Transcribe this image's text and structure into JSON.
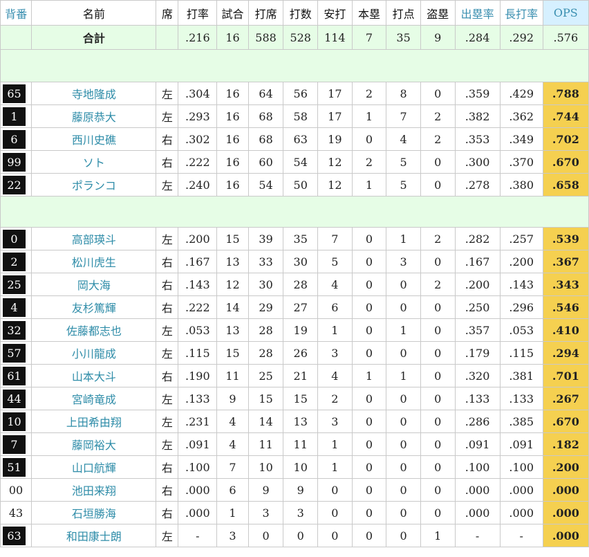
{
  "headers": {
    "number": "背番",
    "name": "名前",
    "bats": "席",
    "avg": "打率",
    "games": "試合",
    "pa": "打席",
    "ab": "打数",
    "hits": "安打",
    "hr": "本塁",
    "rbi": "打点",
    "sb": "盗塁",
    "obp": "出塁率",
    "slg": "長打率",
    "ops": "OPS"
  },
  "total": {
    "label": "合計",
    "avg": ".216",
    "games": "16",
    "pa": "588",
    "ab": "528",
    "hits": "114",
    "hr": "7",
    "rbi": "35",
    "sb": "9",
    "obp": ".284",
    "slg": ".292",
    "ops": ".576"
  },
  "groups": [
    {
      "players": [
        {
          "number": "65",
          "boxed": true,
          "name": "寺地隆成",
          "bats": "左",
          "avg": ".304",
          "games": "16",
          "pa": "64",
          "ab": "56",
          "hits": "17",
          "hr": "2",
          "rbi": "8",
          "sb": "0",
          "obp": ".359",
          "slg": ".429",
          "ops": ".788"
        },
        {
          "number": "1",
          "boxed": true,
          "name": "藤原恭大",
          "bats": "左",
          "avg": ".293",
          "games": "16",
          "pa": "68",
          "ab": "58",
          "hits": "17",
          "hr": "1",
          "rbi": "7",
          "sb": "2",
          "obp": ".382",
          "slg": ".362",
          "ops": ".744"
        },
        {
          "number": "6",
          "boxed": true,
          "name": "西川史礁",
          "bats": "右",
          "avg": ".302",
          "games": "16",
          "pa": "68",
          "ab": "63",
          "hits": "19",
          "hr": "0",
          "rbi": "4",
          "sb": "2",
          "obp": ".353",
          "slg": ".349",
          "ops": ".702"
        },
        {
          "number": "99",
          "boxed": true,
          "name": "ソト",
          "bats": "右",
          "avg": ".222",
          "games": "16",
          "pa": "60",
          "ab": "54",
          "hits": "12",
          "hr": "2",
          "rbi": "5",
          "sb": "0",
          "obp": ".300",
          "slg": ".370",
          "ops": ".670"
        },
        {
          "number": "22",
          "boxed": true,
          "name": "ポランコ",
          "bats": "左",
          "avg": ".240",
          "games": "16",
          "pa": "54",
          "ab": "50",
          "hits": "12",
          "hr": "1",
          "rbi": "5",
          "sb": "0",
          "obp": ".278",
          "slg": ".380",
          "ops": ".658"
        }
      ]
    },
    {
      "players": [
        {
          "number": "0",
          "boxed": true,
          "name": "高部瑛斗",
          "bats": "左",
          "avg": ".200",
          "games": "15",
          "pa": "39",
          "ab": "35",
          "hits": "7",
          "hr": "0",
          "rbi": "1",
          "sb": "2",
          "obp": ".282",
          "slg": ".257",
          "ops": ".539"
        },
        {
          "number": "2",
          "boxed": true,
          "name": "松川虎生",
          "bats": "右",
          "avg": ".167",
          "games": "13",
          "pa": "33",
          "ab": "30",
          "hits": "5",
          "hr": "0",
          "rbi": "3",
          "sb": "0",
          "obp": ".167",
          "slg": ".200",
          "ops": ".367"
        },
        {
          "number": "25",
          "boxed": true,
          "name": "岡大海",
          "bats": "右",
          "avg": ".143",
          "games": "12",
          "pa": "30",
          "ab": "28",
          "hits": "4",
          "hr": "0",
          "rbi": "0",
          "sb": "2",
          "obp": ".200",
          "slg": ".143",
          "ops": ".343"
        },
        {
          "number": "4",
          "boxed": true,
          "name": "友杉篤輝",
          "bats": "右",
          "avg": ".222",
          "games": "14",
          "pa": "29",
          "ab": "27",
          "hits": "6",
          "hr": "0",
          "rbi": "0",
          "sb": "0",
          "obp": ".250",
          "slg": ".296",
          "ops": ".546"
        },
        {
          "number": "32",
          "boxed": true,
          "name": "佐藤都志也",
          "bats": "左",
          "avg": ".053",
          "games": "13",
          "pa": "28",
          "ab": "19",
          "hits": "1",
          "hr": "0",
          "rbi": "1",
          "sb": "0",
          "obp": ".357",
          "slg": ".053",
          "ops": ".410"
        },
        {
          "number": "57",
          "boxed": true,
          "name": "小川龍成",
          "bats": "左",
          "avg": ".115",
          "games": "15",
          "pa": "28",
          "ab": "26",
          "hits": "3",
          "hr": "0",
          "rbi": "0",
          "sb": "0",
          "obp": ".179",
          "slg": ".115",
          "ops": ".294"
        },
        {
          "number": "61",
          "boxed": true,
          "name": "山本大斗",
          "bats": "右",
          "avg": ".190",
          "games": "11",
          "pa": "25",
          "ab": "21",
          "hits": "4",
          "hr": "1",
          "rbi": "1",
          "sb": "0",
          "obp": ".320",
          "slg": ".381",
          "ops": ".701"
        },
        {
          "number": "44",
          "boxed": true,
          "name": "宮崎竜成",
          "bats": "左",
          "avg": ".133",
          "games": "9",
          "pa": "15",
          "ab": "15",
          "hits": "2",
          "hr": "0",
          "rbi": "0",
          "sb": "0",
          "obp": ".133",
          "slg": ".133",
          "ops": ".267"
        },
        {
          "number": "10",
          "boxed": true,
          "name": "上田希由翔",
          "bats": "左",
          "avg": ".231",
          "games": "4",
          "pa": "14",
          "ab": "13",
          "hits": "3",
          "hr": "0",
          "rbi": "0",
          "sb": "0",
          "obp": ".286",
          "slg": ".385",
          "ops": ".670"
        },
        {
          "number": "7",
          "boxed": true,
          "name": "藤岡裕大",
          "bats": "左",
          "avg": ".091",
          "games": "4",
          "pa": "11",
          "ab": "11",
          "hits": "1",
          "hr": "0",
          "rbi": "0",
          "sb": "0",
          "obp": ".091",
          "slg": ".091",
          "ops": ".182"
        },
        {
          "number": "51",
          "boxed": true,
          "name": "山口航輝",
          "bats": "右",
          "avg": ".100",
          "games": "7",
          "pa": "10",
          "ab": "10",
          "hits": "1",
          "hr": "0",
          "rbi": "0",
          "sb": "0",
          "obp": ".100",
          "slg": ".100",
          "ops": ".200"
        },
        {
          "number": "00",
          "boxed": false,
          "name": "池田来翔",
          "bats": "右",
          "avg": ".000",
          "games": "6",
          "pa": "9",
          "ab": "9",
          "hits": "0",
          "hr": "0",
          "rbi": "0",
          "sb": "0",
          "obp": ".000",
          "slg": ".000",
          "ops": ".000"
        },
        {
          "number": "43",
          "boxed": false,
          "name": "石垣勝海",
          "bats": "右",
          "avg": ".000",
          "games": "1",
          "pa": "3",
          "ab": "3",
          "hits": "0",
          "hr": "0",
          "rbi": "0",
          "sb": "0",
          "obp": ".000",
          "slg": ".000",
          "ops": ".000"
        },
        {
          "number": "63",
          "boxed": true,
          "name": "和田康士朗",
          "bats": "左",
          "avg": "-",
          "games": "3",
          "pa": "0",
          "ab": "0",
          "hits": "0",
          "hr": "0",
          "rbi": "0",
          "sb": "1",
          "obp": "-",
          "slg": "-",
          "ops": ".000"
        }
      ]
    }
  ],
  "colors": {
    "header_link": "#3a8fb0",
    "name_link": "#2e8ca8",
    "total_bg": "#e6fde6",
    "ops_bg": "#f5d050",
    "ops_header_bg": "#d6f0ff",
    "number_box_bg": "#111111"
  }
}
